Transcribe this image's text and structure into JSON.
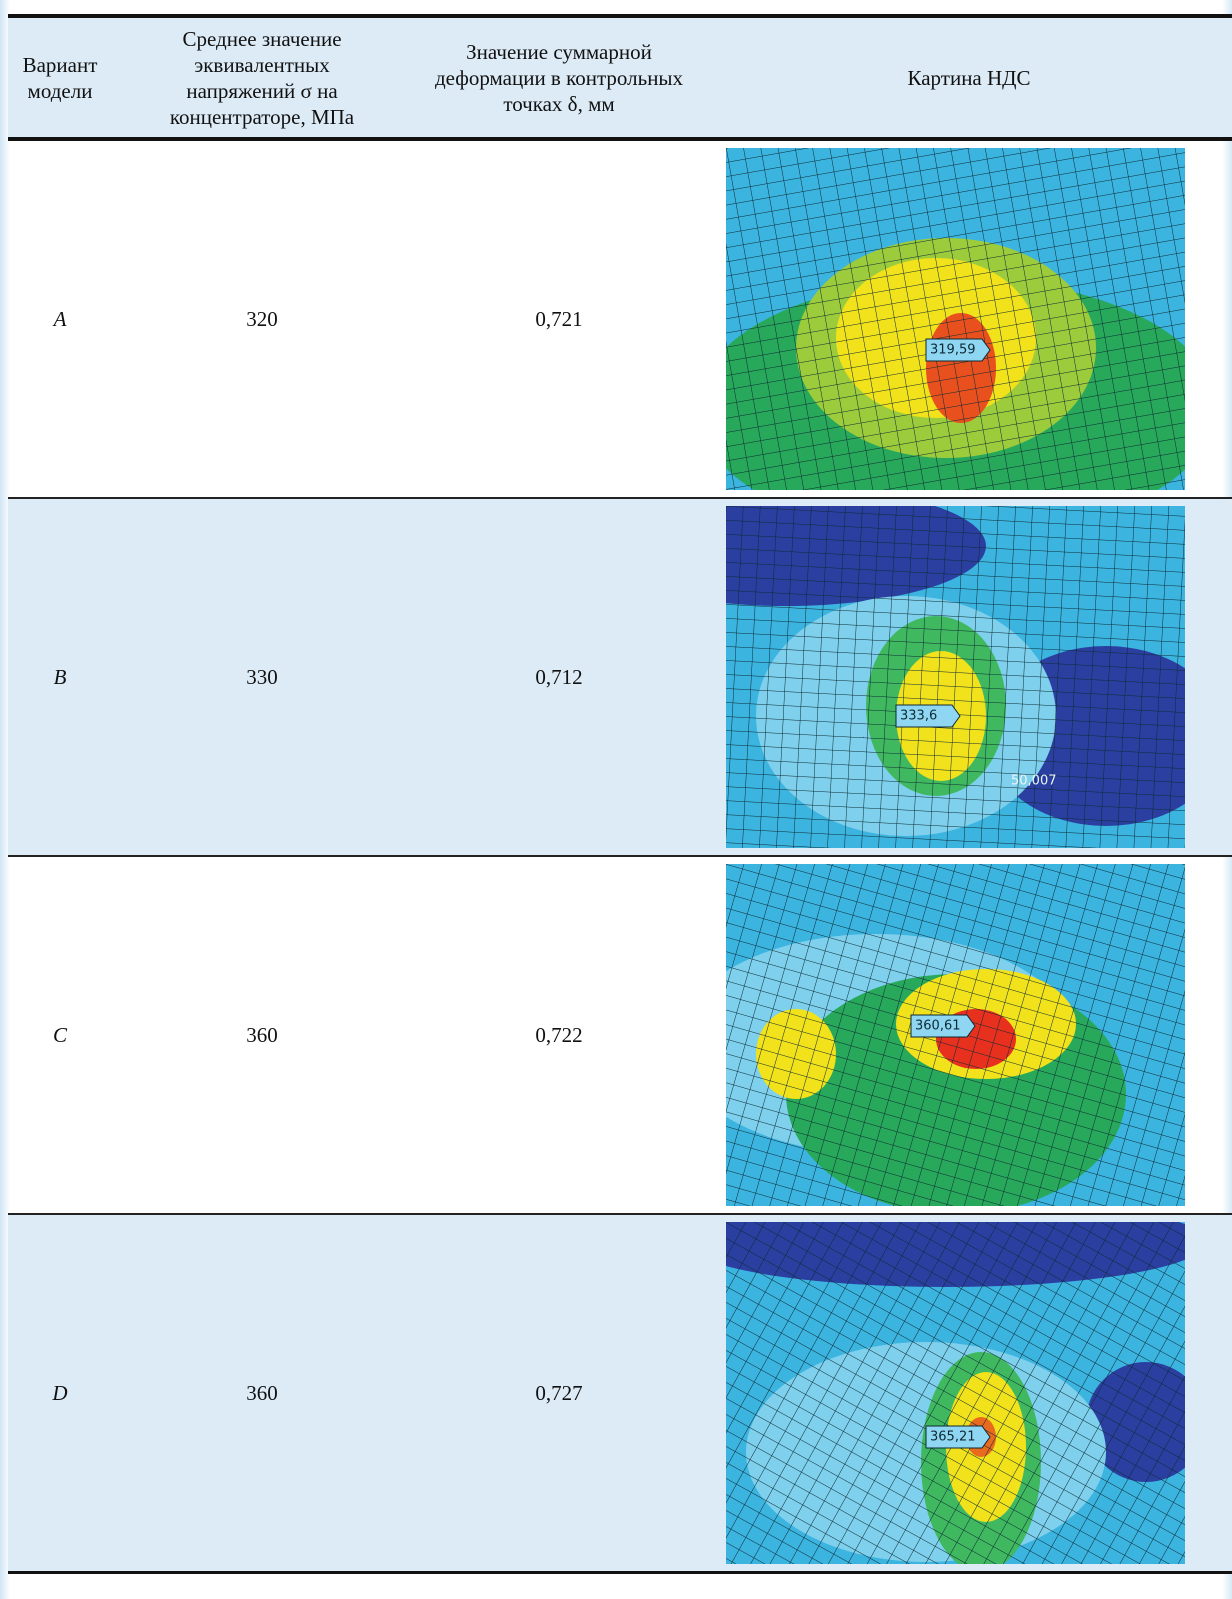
{
  "table": {
    "headers": [
      "Вариант модели",
      "Среднее значение эквивалентных напряжений σ на концентраторе, МПа",
      "Значение суммарной деформации в контрольных точках δ, мм",
      "Картина НДС"
    ],
    "rows": [
      {
        "variant": "A",
        "stress": "320",
        "deformation": "0,721",
        "picture_labels": [
          "319,59"
        ]
      },
      {
        "variant": "B",
        "stress": "330",
        "deformation": "0,712",
        "picture_labels": [
          "333,6",
          "50,007"
        ]
      },
      {
        "variant": "C",
        "stress": "360",
        "deformation": "0,722",
        "picture_labels": [
          "360,61"
        ]
      },
      {
        "variant": "D",
        "stress": "360",
        "deformation": "0,727",
        "picture_labels": [
          "365,21"
        ]
      }
    ]
  }
}
